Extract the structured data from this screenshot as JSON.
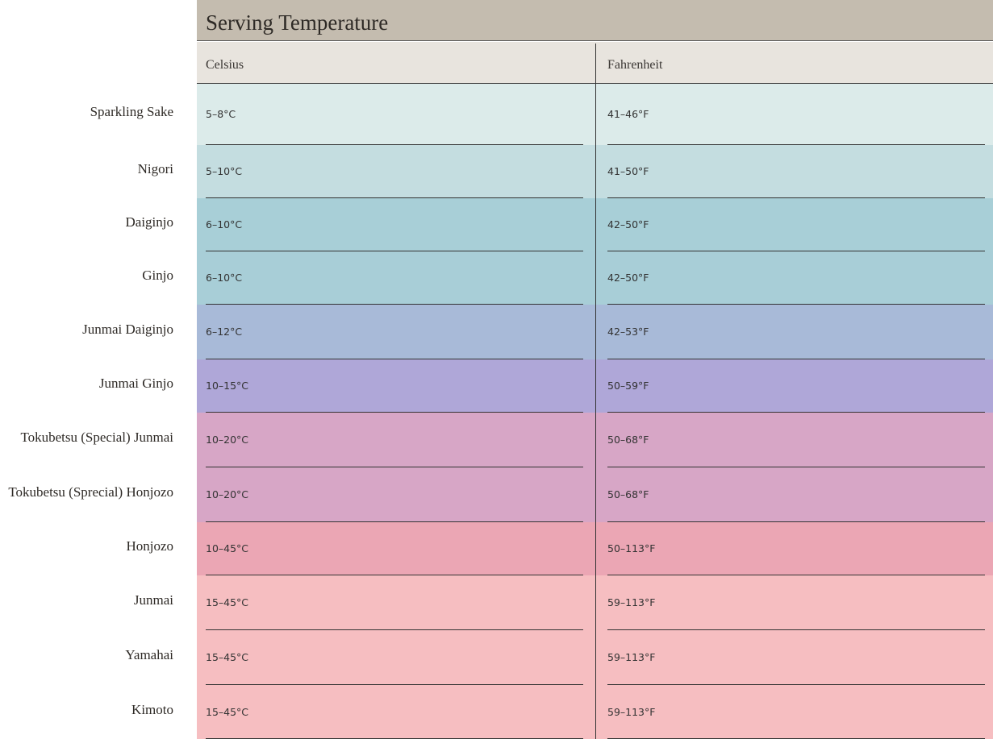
{
  "header": {
    "title": "Serving Temperature"
  },
  "table": {
    "columns": [
      "Celsius",
      "Fahrenheit"
    ],
    "rows": [
      {
        "label": "Sparkling Sake",
        "celsius": "5–8°C",
        "fahrenheit": "41–46°F"
      },
      {
        "label": "Nigori",
        "celsius": "5–10°C",
        "fahrenheit": "41–50°F"
      },
      {
        "label": "Daiginjo",
        "celsius": "6–10°C",
        "fahrenheit": "42–50°F"
      },
      {
        "label": "Ginjo",
        "celsius": "6–10°C",
        "fahrenheit": "42–50°F"
      },
      {
        "label": "Junmai Daiginjo",
        "celsius": "6–12°C",
        "fahrenheit": "42–53°F"
      },
      {
        "label": "Junmai Ginjo",
        "celsius": "10–15°C",
        "fahrenheit": "50–59°F"
      },
      {
        "label": "Tokubetsu (Special) Junmai",
        "celsius": "10–20°C",
        "fahrenheit": "50–68°F"
      },
      {
        "label": "Tokubetsu (Sprecial) Honjozo",
        "celsius": "10–20°C",
        "fahrenheit": "50–68°F"
      },
      {
        "label": "Honjozo",
        "celsius": "10–45°C",
        "fahrenheit": "50–113°F"
      },
      {
        "label": "Junmai",
        "celsius": "15–45°C",
        "fahrenheit": "59–113°F"
      },
      {
        "label": "Yamahai",
        "celsius": "15–45°C",
        "fahrenheit": "59–113°F"
      },
      {
        "label": "Kimoto",
        "celsius": "15–45°C",
        "fahrenheit": "59–113°F"
      }
    ]
  }
}
